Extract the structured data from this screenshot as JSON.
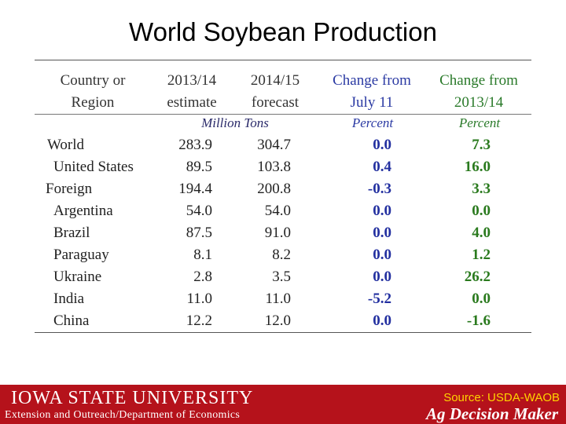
{
  "title": "World Soybean Production",
  "headers": {
    "country": [
      "Country or",
      "Region"
    ],
    "est": [
      "2013/14",
      "estimate"
    ],
    "fcst": [
      "2014/15",
      "forecast"
    ],
    "chg_july": [
      "Change from",
      "July 11"
    ],
    "chg_prev": [
      "Change from",
      "2013/14"
    ]
  },
  "units": {
    "tons": "Million Tons",
    "pct1": "Percent",
    "pct2": "Percent"
  },
  "rows": [
    {
      "name": "World",
      "est": "283.9",
      "fcst": "304.7",
      "chg_july": "0.0",
      "chg_prev": "7.3"
    },
    {
      "name": "United States",
      "est": "89.5",
      "fcst": "103.8",
      "chg_july": "0.4",
      "chg_prev": "16.0"
    },
    {
      "name": "Foreign",
      "est": "194.4",
      "fcst": "200.8",
      "chg_july": "-0.3",
      "chg_prev": "3.3"
    },
    {
      "name": "Argentina",
      "est": "54.0",
      "fcst": "54.0",
      "chg_july": "0.0",
      "chg_prev": "0.0"
    },
    {
      "name": "Brazil",
      "est": "87.5",
      "fcst": "91.0",
      "chg_july": "0.0",
      "chg_prev": "4.0"
    },
    {
      "name": "Paraguay",
      "est": "8.1",
      "fcst": "8.2",
      "chg_july": "0.0",
      "chg_prev": "1.2"
    },
    {
      "name": "Ukraine",
      "est": "2.8",
      "fcst": "3.5",
      "chg_july": "0.0",
      "chg_prev": "26.2"
    },
    {
      "name": "India",
      "est": "11.0",
      "fcst": "11.0",
      "chg_july": "-5.2",
      "chg_prev": "0.0"
    },
    {
      "name": "China",
      "est": "12.2",
      "fcst": "12.0",
      "chg_july": "0.0",
      "chg_prev": "-1.6"
    }
  ],
  "footer": {
    "university": "IOWA STATE UNIVERSITY",
    "department": "Extension and Outreach/Department of Economics",
    "source": "Source: USDA-WAOB",
    "brand": "Ag Decision Maker"
  },
  "colors": {
    "footer_bg": "#b5121b",
    "source_text": "#ffd400",
    "change_blue": "#2330a0",
    "change_green": "#2a7a1e"
  }
}
